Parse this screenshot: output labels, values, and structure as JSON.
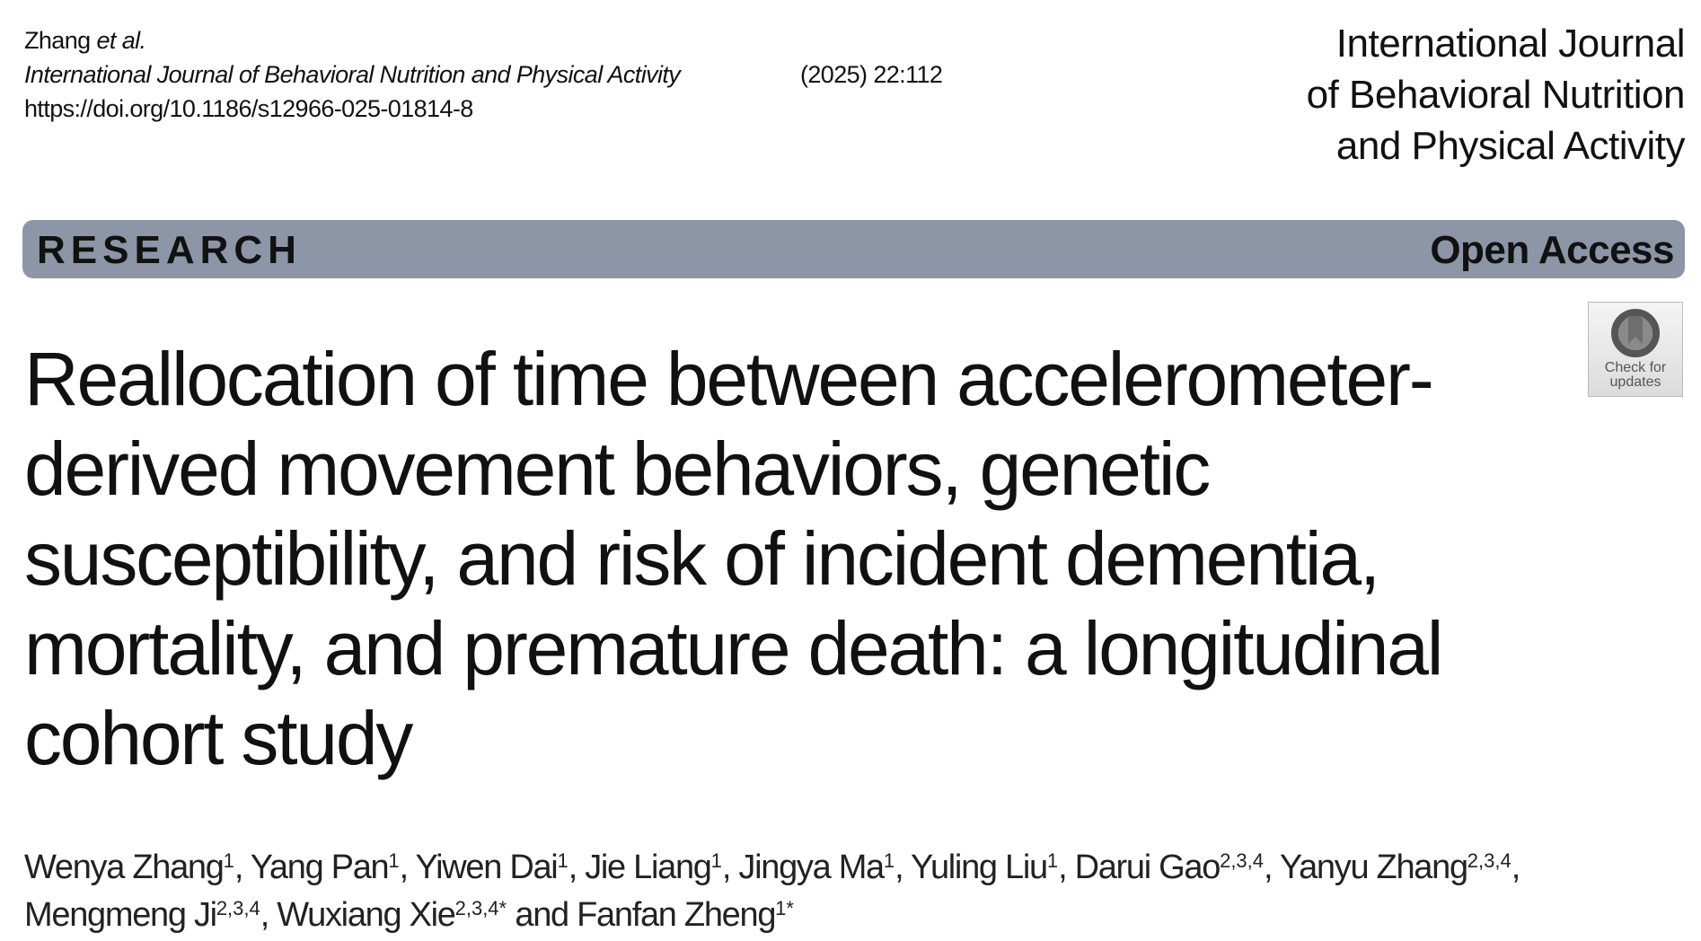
{
  "header": {
    "author_short": "Zhang",
    "et_al": "et al.",
    "journal": "International Journal of Behavioral Nutrition and Physical Activity",
    "volume": "(2025) 22:112",
    "doi": "https://doi.org/10.1186/s12966-025-01814-8"
  },
  "journal_logo": {
    "lines": [
      "International Journal",
      "of Behavioral Nutrition",
      "and Physical Activity"
    ]
  },
  "banner": {
    "type": "RESEARCH",
    "access": "Open Access",
    "color": "#8d96a7"
  },
  "badge": {
    "line1": "Check for",
    "line2": "updates",
    "icon": "bookmark-circle-icon"
  },
  "title_lines": [
    "Reallocation of time between accelerometer-",
    "derived movement behaviors, genetic",
    "susceptibility, and risk of incident dementia,",
    "mortality, and premature death: a longitudinal",
    "cohort study"
  ],
  "authors": [
    {
      "name": "Wenya Zhang",
      "aff": "1",
      "sep": ", "
    },
    {
      "name": "Yang Pan",
      "aff": "1",
      "sep": ", "
    },
    {
      "name": "Yiwen Dai",
      "aff": "1",
      "sep": ", "
    },
    {
      "name": "Jie Liang",
      "aff": "1",
      "sep": ", "
    },
    {
      "name": "Jingya Ma",
      "aff": "1",
      "sep": ", "
    },
    {
      "name": "Yuling Liu",
      "aff": "1",
      "sep": ", "
    },
    {
      "name": "Darui Gao",
      "aff": "2,3,4",
      "sep": ", "
    },
    {
      "name": "Yanyu Zhang",
      "aff": "2,3,4",
      "sep": ", "
    },
    {
      "name": "Mengmeng Ji",
      "aff": "2,3,4",
      "sep": ", "
    },
    {
      "name": "Wuxiang Xie",
      "aff": "2,3,4*",
      "sep": " and "
    },
    {
      "name": "Fanfan Zheng",
      "aff": "1*",
      "sep": ""
    }
  ]
}
